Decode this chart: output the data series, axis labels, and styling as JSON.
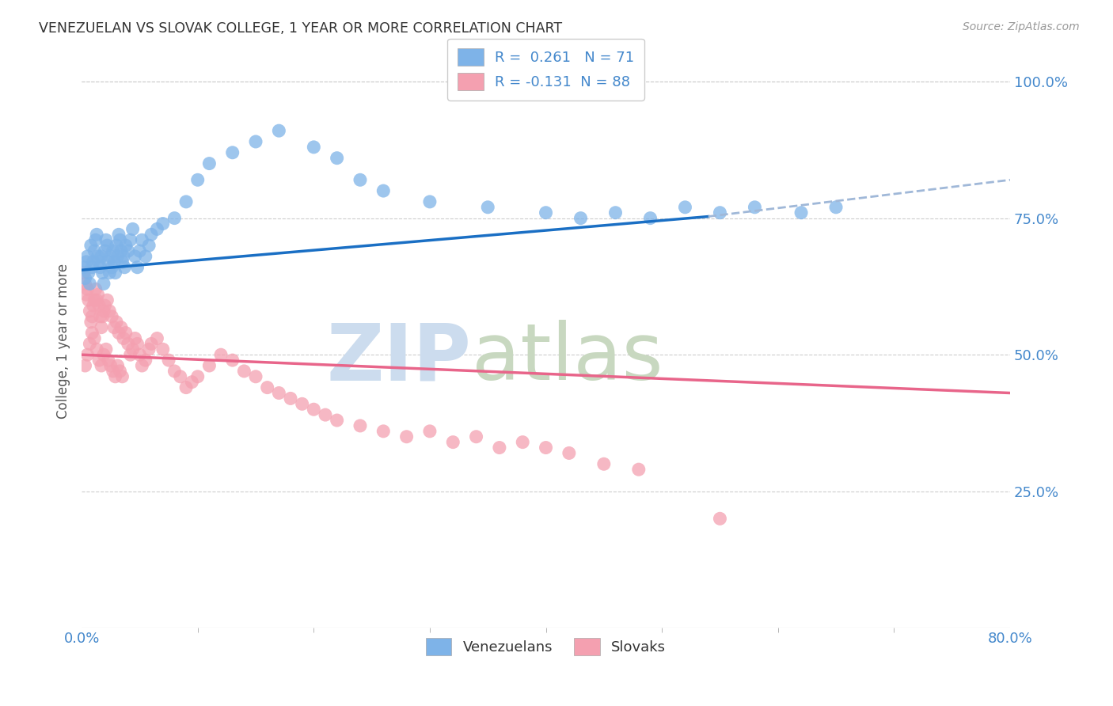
{
  "title": "VENEZUELAN VS SLOVAK COLLEGE, 1 YEAR OR MORE CORRELATION CHART",
  "source": "Source: ZipAtlas.com",
  "xlabel_ticks_shown": [
    "0.0%",
    "80.0%"
  ],
  "xlabel_tick_positions": [
    0.0,
    0.8
  ],
  "xlabel_minor_ticks": [
    0.1,
    0.2,
    0.3,
    0.4,
    0.5,
    0.6,
    0.7
  ],
  "ylabel_ticks": [
    "100.0%",
    "75.0%",
    "50.0%",
    "25.0%"
  ],
  "ylabel_vals": [
    1.0,
    0.75,
    0.5,
    0.25
  ],
  "ylabel_label": "College, 1 year or more",
  "xlim": [
    0.0,
    0.8
  ],
  "ylim": [
    0.0,
    1.05
  ],
  "venezuelan_color": "#7eb3e8",
  "slovak_color": "#f4a0b0",
  "blue_line_color": "#1a6fc4",
  "pink_line_color": "#e8658a",
  "dashed_line_color": "#a0b8d8",
  "R_venezuelan": 0.261,
  "N_venezuelan": 71,
  "R_slovak": -0.131,
  "N_slovak": 88,
  "legend_label_venezuelan": "Venezuelans",
  "legend_label_slovak": "Slovaks",
  "blue_line_solid_end": 0.54,
  "venezuelan_x": [
    0.002,
    0.003,
    0.004,
    0.005,
    0.006,
    0.007,
    0.008,
    0.009,
    0.01,
    0.011,
    0.012,
    0.013,
    0.014,
    0.015,
    0.016,
    0.017,
    0.018,
    0.019,
    0.02,
    0.021,
    0.022,
    0.023,
    0.024,
    0.025,
    0.026,
    0.027,
    0.028,
    0.029,
    0.03,
    0.031,
    0.032,
    0.033,
    0.034,
    0.035,
    0.036,
    0.037,
    0.038,
    0.04,
    0.042,
    0.044,
    0.046,
    0.048,
    0.05,
    0.052,
    0.055,
    0.058,
    0.06,
    0.065,
    0.07,
    0.08,
    0.09,
    0.1,
    0.11,
    0.13,
    0.15,
    0.17,
    0.2,
    0.22,
    0.24,
    0.26,
    0.3,
    0.35,
    0.4,
    0.43,
    0.46,
    0.49,
    0.52,
    0.55,
    0.58,
    0.62,
    0.65
  ],
  "venezuelan_y": [
    0.66,
    0.64,
    0.67,
    0.68,
    0.65,
    0.63,
    0.7,
    0.66,
    0.67,
    0.69,
    0.71,
    0.72,
    0.68,
    0.67,
    0.66,
    0.68,
    0.65,
    0.63,
    0.69,
    0.71,
    0.7,
    0.67,
    0.65,
    0.68,
    0.66,
    0.69,
    0.67,
    0.65,
    0.7,
    0.68,
    0.72,
    0.71,
    0.69,
    0.67,
    0.68,
    0.66,
    0.7,
    0.69,
    0.71,
    0.73,
    0.68,
    0.66,
    0.69,
    0.71,
    0.68,
    0.7,
    0.72,
    0.73,
    0.74,
    0.75,
    0.78,
    0.82,
    0.85,
    0.87,
    0.89,
    0.91,
    0.88,
    0.86,
    0.82,
    0.8,
    0.78,
    0.77,
    0.76,
    0.75,
    0.76,
    0.75,
    0.77,
    0.76,
    0.77,
    0.76,
    0.77
  ],
  "slovak_x": [
    0.002,
    0.003,
    0.004,
    0.005,
    0.006,
    0.007,
    0.008,
    0.009,
    0.01,
    0.011,
    0.012,
    0.013,
    0.014,
    0.015,
    0.016,
    0.017,
    0.018,
    0.019,
    0.02,
    0.022,
    0.024,
    0.026,
    0.028,
    0.03,
    0.032,
    0.034,
    0.036,
    0.038,
    0.04,
    0.042,
    0.044,
    0.046,
    0.048,
    0.05,
    0.052,
    0.055,
    0.058,
    0.06,
    0.065,
    0.07,
    0.075,
    0.08,
    0.085,
    0.09,
    0.095,
    0.1,
    0.11,
    0.12,
    0.13,
    0.14,
    0.15,
    0.16,
    0.17,
    0.18,
    0.19,
    0.2,
    0.21,
    0.22,
    0.24,
    0.26,
    0.28,
    0.3,
    0.32,
    0.34,
    0.36,
    0.38,
    0.4,
    0.42,
    0.45,
    0.48,
    0.003,
    0.005,
    0.007,
    0.009,
    0.011,
    0.013,
    0.015,
    0.017,
    0.019,
    0.021,
    0.023,
    0.025,
    0.027,
    0.029,
    0.031,
    0.033,
    0.035,
    0.55
  ],
  "slovak_y": [
    0.65,
    0.63,
    0.61,
    0.62,
    0.6,
    0.58,
    0.56,
    0.57,
    0.59,
    0.6,
    0.62,
    0.6,
    0.61,
    0.59,
    0.57,
    0.55,
    0.57,
    0.58,
    0.59,
    0.6,
    0.58,
    0.57,
    0.55,
    0.56,
    0.54,
    0.55,
    0.53,
    0.54,
    0.52,
    0.5,
    0.51,
    0.53,
    0.52,
    0.5,
    0.48,
    0.49,
    0.51,
    0.52,
    0.53,
    0.51,
    0.49,
    0.47,
    0.46,
    0.44,
    0.45,
    0.46,
    0.48,
    0.5,
    0.49,
    0.47,
    0.46,
    0.44,
    0.43,
    0.42,
    0.41,
    0.4,
    0.39,
    0.38,
    0.37,
    0.36,
    0.35,
    0.36,
    0.34,
    0.35,
    0.33,
    0.34,
    0.33,
    0.32,
    0.3,
    0.29,
    0.48,
    0.5,
    0.52,
    0.54,
    0.53,
    0.51,
    0.49,
    0.48,
    0.5,
    0.51,
    0.49,
    0.48,
    0.47,
    0.46,
    0.48,
    0.47,
    0.46,
    0.2
  ]
}
